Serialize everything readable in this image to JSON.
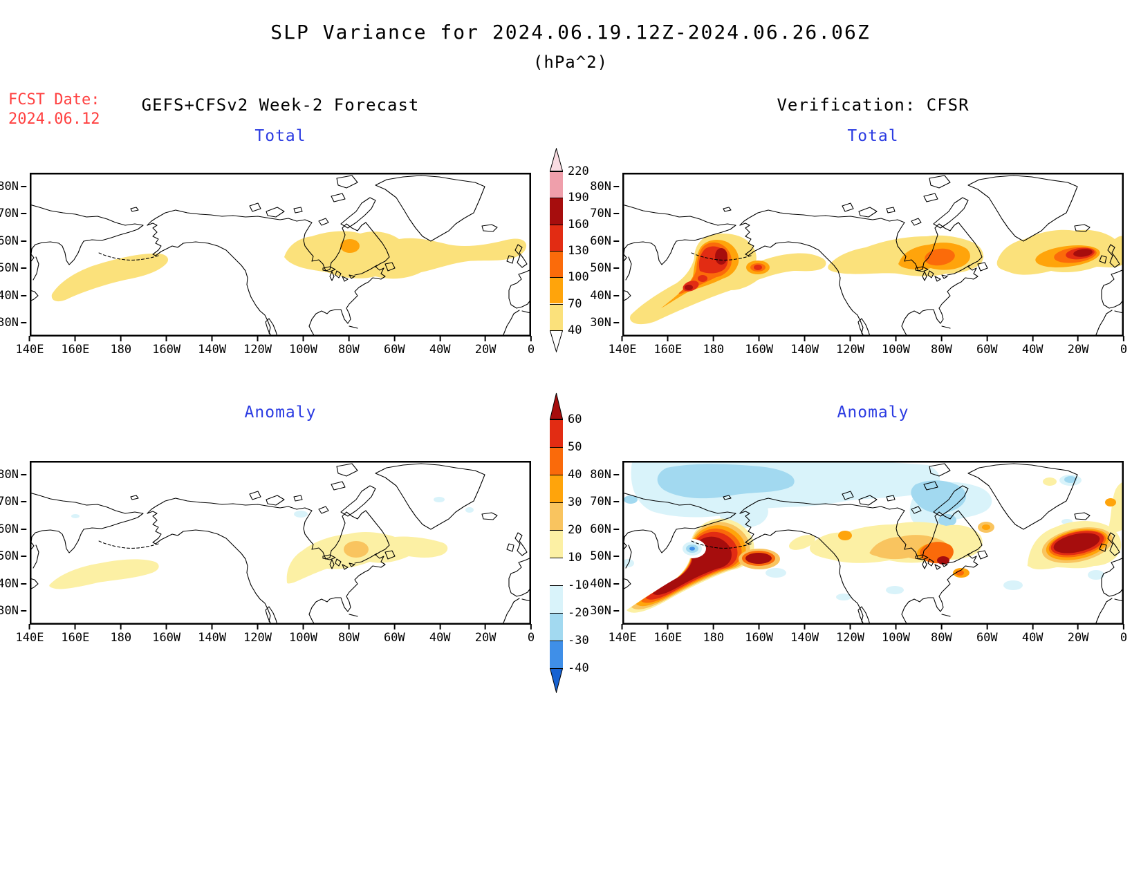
{
  "title": {
    "line1": "SLP Variance for 2024.06.19.12Z-2024.06.26.06Z",
    "line2": "(hPa^2)"
  },
  "fcst": {
    "label": "FCST Date:",
    "value": "2024.06.12"
  },
  "headers": {
    "left": "GEFS+CFSv2 Week-2 Forecast",
    "right": "Verification: CFSR"
  },
  "panels": [
    {
      "id": "forecast-total",
      "title": "Total"
    },
    {
      "id": "verification-total",
      "title": "Total"
    },
    {
      "id": "forecast-anomaly",
      "title": "Anomaly"
    },
    {
      "id": "verification-anomaly",
      "title": "Anomaly"
    }
  ],
  "axes": {
    "x_ticks": [
      "140E",
      "160E",
      "180",
      "160W",
      "140W",
      "120W",
      "100W",
      "80W",
      "60W",
      "40W",
      "20W",
      "0"
    ],
    "y_ticks": [
      "80N",
      "70N",
      "60N",
      "50N",
      "40N",
      "30N"
    ]
  },
  "colorbars": {
    "total": {
      "ticks": [
        "220",
        "190",
        "160",
        "130",
        "100",
        "70",
        "40"
      ],
      "colors": [
        "t190",
        "t160",
        "t130",
        "t100",
        "t70",
        "t40"
      ],
      "above": "t220",
      "below": "white"
    },
    "anomaly": {
      "ticks": [
        "60",
        "50",
        "40",
        "30",
        "20",
        "10",
        "-10",
        "-20",
        "-30",
        "-40"
      ],
      "colors": [
        "a50",
        "a40",
        "a30",
        "a20",
        "a10",
        "white",
        "am10",
        "am20",
        "am30"
      ],
      "above": "a60",
      "below": "am40"
    }
  },
  "palette": {
    "t40": "#FBE17B",
    "t70": "#FFA40B",
    "t100": "#FB6B0A",
    "t130": "#E22C13",
    "t160": "#A60D0D",
    "t190": "#EF9FAB",
    "t220": "#FADCE2",
    "a10": "#FCF0A4",
    "a20": "#F9C45F",
    "a30": "#FFA40B",
    "a40": "#FA6A0A",
    "a50": "#E22C13",
    "a60": "#A60D0D",
    "am10": "#D9F3FA",
    "am20": "#A2D9F0",
    "am30": "#3F8FE8",
    "am40": "#1662D2",
    "white": "#FFFFFF",
    "title_blue": "#2B3BE2",
    "date_red": "#FF4040",
    "ink": "#000000"
  },
  "chart_data": [
    {
      "type": "heatmap",
      "id": "forecast-total",
      "panel_title": "Total",
      "dataset": "GEFS+CFSv2 Week-2 Forecast",
      "variable": "SLP Variance",
      "units": "hPa^2",
      "valid_period": "2024.06.19.12Z-2024.06.26.06Z",
      "forecast_date": "2024.06.12",
      "x_range": [
        "140E",
        "0"
      ],
      "y_range": [
        "25N",
        "85N"
      ],
      "contour_levels": [
        40,
        70,
        100,
        130,
        160,
        190,
        220
      ],
      "features": [
        {
          "region": "North Pacific 152E-157W, 40-55N",
          "value_range": "40-70"
        },
        {
          "region": "Central/Eastern Canada to North Atlantic 106W-2W, 44-63N",
          "value_range": "40-70"
        },
        {
          "region": "Quebec east of Hudson Bay near 80W 58N",
          "value_range": "70-100"
        }
      ]
    },
    {
      "type": "heatmap",
      "id": "verification-total",
      "panel_title": "Total",
      "dataset": "Verification: CFSR",
      "variable": "SLP Variance",
      "units": "hPa^2",
      "valid_period": "2024.06.19.12Z-2024.06.26.06Z",
      "x_range": [
        "140E",
        "0"
      ],
      "y_range": [
        "25N",
        "85N"
      ],
      "contour_levels": [
        40,
        70,
        100,
        130,
        160,
        190,
        220
      ],
      "features": [
        {
          "region": "North Pacific banana 145E-155W, 33-62N",
          "value_range": "40-190, peak 160-190 near 178E 52N"
        },
        {
          "region": "SW tail 150E-165E, 35-45N",
          "value_range": "100-190 spots"
        },
        {
          "region": "Gulf of Alaska arm near 166W 50N",
          "value_range": "100-160"
        },
        {
          "region": "Central Canada 100W-70W, 45-57N",
          "value_range": "70-130, peak near 82W 53N"
        },
        {
          "region": "North Atlantic 35W-5W, 48-62N",
          "value_range": "70-190, peak 160-190 near 16W 55N"
        }
      ]
    },
    {
      "type": "heatmap",
      "id": "forecast-anomaly",
      "panel_title": "Anomaly",
      "dataset": "GEFS+CFSv2 Week-2 Forecast",
      "variable": "SLP Variance anomaly",
      "units": "hPa^2",
      "x_range": [
        "140E",
        "0"
      ],
      "y_range": [
        "25N",
        "85N"
      ],
      "contour_levels": [
        -40,
        -30,
        -20,
        -10,
        10,
        20,
        30,
        40,
        50,
        60
      ],
      "features": [
        {
          "region": "NW Pacific 150E-172W, 40-52N",
          "value_range": "+10 to +20"
        },
        {
          "region": "E Canada / NW Atlantic 106W-33W, 39-59N",
          "value_range": "+10 to +20"
        },
        {
          "region": "James Bay / Quebec near 78W 53N",
          "value_range": "+20 to +30"
        },
        {
          "region": "small spots near 100W 66N and 40W 71N",
          "value_range": "-10 to -20"
        }
      ]
    },
    {
      "type": "heatmap",
      "id": "verification-anomaly",
      "panel_title": "Anomaly",
      "dataset": "Verification: CFSR",
      "variable": "SLP Variance anomaly",
      "units": "hPa^2",
      "x_range": [
        "140E",
        "0"
      ],
      "y_range": [
        "25N",
        "85N"
      ],
      "contour_levels": [
        -40,
        -30,
        -20,
        -10,
        10,
        20,
        30,
        40,
        50,
        60
      ],
      "features": [
        {
          "region": "Arctic band 140E-10W, 60-85N",
          "value_range": "-10 to -30, cores near 175E 76N and Baffin 75W 70N"
        },
        {
          "region": "North Pacific banana 145E-152W, 32-62N",
          "value_range": "+20 to >60, broad max near 178E 50N"
        },
        {
          "region": "embedded negative spot near 170E 52N",
          "value_range": "-20 to -40"
        },
        {
          "region": "Southern Canada / Great Lakes 132W-60W, 40-58N",
          "value_range": "+20 to >60, max near 80W 47N"
        },
        {
          "region": "NE Atlantic 40W-2W, 45-62N",
          "value_range": "+20 to >60, large max near 17W 55N"
        },
        {
          "region": "scattered midlatitude spots",
          "value_range": "-10 to -20"
        }
      ]
    }
  ]
}
